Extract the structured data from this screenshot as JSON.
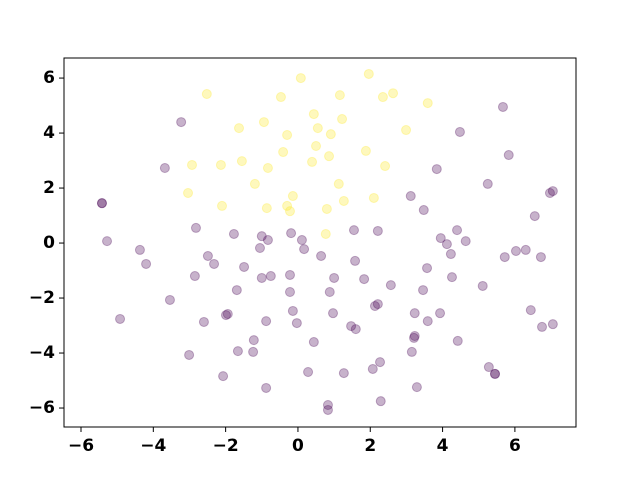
{
  "chart_data": {
    "type": "scatter",
    "xlim": [
      -6.47,
      7.69
    ],
    "ylim": [
      -6.69,
      6.73
    ],
    "xticks": [
      {
        "value": -6,
        "label": "−6"
      },
      {
        "value": -4,
        "label": "−4"
      },
      {
        "value": -2,
        "label": "−2"
      },
      0,
      2,
      4,
      6
    ],
    "yticks": [
      {
        "value": -6,
        "label": "−6"
      },
      {
        "value": -4,
        "label": "−4"
      },
      {
        "value": -2,
        "label": "−2"
      },
      0,
      2,
      4,
      6
    ],
    "grid": false,
    "alpha": 0.3,
    "series": [
      {
        "color": "#440154",
        "x": [
          -3.23,
          -3.68,
          -5.42,
          -5.42,
          -5.28,
          -4.37,
          -4.2,
          -4.92,
          -3.54,
          -2.82,
          -2.85,
          -2.49,
          -2.32,
          -1.77,
          -1.0,
          -0.83,
          -1.05,
          -0.75,
          -1.0,
          -0.19,
          0.11,
          0.17,
          0.64,
          1.55,
          2.21,
          1.58,
          1.0,
          1.83,
          0.88,
          -0.22,
          -0.22,
          -0.14,
          -0.03,
          -1.99,
          -1.69,
          -1.49,
          -1.94,
          -2.6,
          -0.88,
          -1.22,
          -1.66,
          -1.24,
          -3.01,
          -2.07,
          -0.88,
          0.28,
          0.44,
          0.97,
          1.47,
          1.6,
          1.27,
          2.07,
          2.27,
          2.13,
          2.21,
          2.57,
          3.23,
          3.59,
          3.57,
          3.93,
          3.95,
          4.12,
          4.64,
          4.4,
          3.46,
          4.26,
          4.23,
          3.84,
          3.12,
          3.48,
          4.42,
          3.15,
          3.23,
          3.21,
          3.29,
          5.11,
          5.25,
          4.48,
          5.67,
          5.83,
          5.72,
          6.03,
          6.3,
          6.55,
          6.72,
          6.97,
          7.05,
          6.44,
          6.75,
          7.05,
          5.28,
          5.45,
          5.45,
          2.29,
          0.83,
          0.83
        ],
        "y": [
          4.4,
          2.73,
          1.45,
          1.45,
          0.07,
          -0.25,
          -0.76,
          -2.76,
          -2.07,
          0.55,
          -1.2,
          -0.47,
          -0.76,
          0.33,
          0.25,
          0.11,
          -0.18,
          -1.2,
          -1.27,
          0.36,
          0.11,
          -0.22,
          -0.47,
          0.47,
          0.44,
          -0.65,
          -1.27,
          -1.31,
          -1.78,
          -1.16,
          -1.78,
          -2.47,
          -2.91,
          -2.62,
          -1.71,
          -0.87,
          -2.58,
          -2.87,
          -2.84,
          -3.53,
          -3.93,
          -3.96,
          -4.07,
          -4.84,
          -5.27,
          -4.69,
          -3.6,
          -2.55,
          -3.02,
          -3.13,
          -4.73,
          -4.58,
          -4.33,
          -2.29,
          -2.22,
          -1.53,
          -2.55,
          -2.84,
          -0.91,
          -2.55,
          0.18,
          -0.04,
          0.07,
          0.47,
          -1.71,
          -1.24,
          -0.4,
          2.69,
          1.71,
          1.2,
          -3.56,
          -3.96,
          -3.38,
          -3.45,
          -5.24,
          -1.56,
          2.15,
          4.04,
          4.95,
          3.2,
          -0.51,
          -0.29,
          -0.25,
          0.98,
          -0.51,
          1.82,
          1.89,
          -2.44,
          -3.05,
          -2.95,
          -4.51,
          -4.76,
          -4.76,
          -5.75,
          -5.89,
          -6.07
        ]
      },
      {
        "color": "#fde725",
        "x": [
          -2.52,
          0.08,
          1.96,
          -0.47,
          0.44,
          1.16,
          2.35,
          2.63,
          3.59,
          -1.63,
          -0.94,
          -0.3,
          0.55,
          0.91,
          1.22,
          2.99,
          -1.55,
          -2.93,
          -2.13,
          -0.83,
          -0.41,
          0.39,
          0.5,
          0.86,
          1.88,
          2.41,
          -3.04,
          -2.1,
          -1.19,
          -0.86,
          -0.14,
          -0.3,
          -0.22,
          0.8,
          1.13,
          1.27,
          2.1,
          0.77
        ],
        "y": [
          5.42,
          6.0,
          6.15,
          5.31,
          4.69,
          5.38,
          5.31,
          5.45,
          5.09,
          4.18,
          4.4,
          3.93,
          4.18,
          3.96,
          4.51,
          4.11,
          2.98,
          2.84,
          2.84,
          2.73,
          3.31,
          2.95,
          3.53,
          3.16,
          3.35,
          2.8,
          1.82,
          1.35,
          2.15,
          1.27,
          1.71,
          1.35,
          1.16,
          1.24,
          2.15,
          1.53,
          1.64,
          0.33
        ]
      }
    ]
  }
}
